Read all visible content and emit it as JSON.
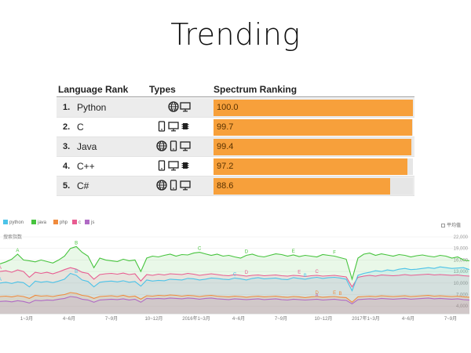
{
  "slide": {
    "title": "Trending"
  },
  "ranking": {
    "headers": {
      "rank": "Language Rank",
      "types": "Types",
      "spectrum": "Spectrum Ranking"
    },
    "rows": [
      {
        "num": "1.",
        "language": "Python",
        "types": [
          "web-icon",
          "desktop-icon"
        ],
        "score": "100.0",
        "value": 100.0
      },
      {
        "num": "2.",
        "language": "C",
        "types": [
          "mobile-icon",
          "desktop-icon",
          "embedded-icon"
        ],
        "score": "99.7",
        "value": 99.7
      },
      {
        "num": "3.",
        "language": "Java",
        "types": [
          "web-icon",
          "mobile-icon",
          "desktop-icon"
        ],
        "score": "99.4",
        "value": 99.4
      },
      {
        "num": "4.",
        "language": "C++",
        "types": [
          "mobile-icon",
          "desktop-icon",
          "embedded-icon"
        ],
        "score": "97.2",
        "value": 97.2
      },
      {
        "num": "5.",
        "language": "C#",
        "types": [
          "web-icon",
          "mobile-icon",
          "desktop-icon"
        ],
        "score": "88.6",
        "value": 88.6
      }
    ],
    "bar_color": "#f7a03b"
  },
  "chart_data": {
    "type": "line",
    "ylabel": "搜索指数",
    "avg_toggle": "平均值",
    "ylim": [
      2000,
      22000
    ],
    "y_ticks": [
      22000,
      19000,
      16000,
      13000,
      10000,
      7000,
      4000
    ],
    "x_ticks": [
      "1~3月",
      "4~6月",
      "7~9月",
      "10~12月",
      "2016年1~3月",
      "4~6月",
      "7~9月",
      "10~12月",
      "2017年1~3月",
      "4~6月",
      "7~9月"
    ],
    "x": [
      0,
      1,
      2,
      3,
      4,
      5,
      6,
      7,
      8,
      9,
      10,
      11,
      12,
      13,
      14,
      15,
      16,
      17,
      18,
      19,
      20,
      21,
      22,
      23,
      24,
      25,
      26,
      27,
      28,
      29,
      30,
      31,
      32,
      33,
      34,
      35,
      36,
      37,
      38,
      39,
      40,
      41,
      42,
      43,
      44,
      45,
      46,
      47,
      48,
      49,
      50,
      51,
      52,
      53,
      54,
      55,
      56,
      57,
      58,
      59,
      60,
      61,
      62,
      63,
      64,
      65,
      66,
      67,
      68,
      69,
      70,
      71,
      72,
      73,
      74,
      75,
      76,
      77,
      78,
      79,
      80
    ],
    "series": [
      {
        "name": "python",
        "color": "#4cc3e8",
        "values": [
          10000,
          10200,
          9900,
          10300,
          10100,
          9000,
          10500,
          10200,
          10400,
          10100,
          10500,
          11000,
          12500,
          12000,
          10800,
          10400,
          9000,
          10200,
          10400,
          10500,
          10300,
          10600,
          10200,
          10400,
          9200,
          10800,
          10500,
          10700,
          10600,
          11000,
          10900,
          10800,
          11200,
          11100,
          10800,
          11000,
          11300,
          11200,
          11000,
          10900,
          11300,
          11100,
          10800,
          11200,
          11400,
          11100,
          11200,
          11300,
          11000,
          10900,
          11400,
          11200,
          11000,
          11300,
          11500,
          11200,
          11400,
          11500,
          11300,
          11000,
          8000,
          12000,
          12500,
          12800,
          13200,
          13000,
          13400,
          13200,
          13600,
          13800,
          13500,
          13600,
          13800,
          14000,
          13800,
          14200,
          14000,
          13800,
          13900,
          14000,
          13500
        ]
      },
      {
        "name": "java",
        "color": "#47c43e",
        "values": [
          15000,
          15500,
          16200,
          17500,
          16000,
          15800,
          15500,
          16000,
          15600,
          15200,
          16000,
          17000,
          19000,
          19500,
          18000,
          17000,
          14000,
          16500,
          16000,
          15800,
          15600,
          16200,
          15800,
          16000,
          13000,
          16500,
          17000,
          16800,
          17200,
          17500,
          17000,
          17400,
          17300,
          17800,
          18000,
          17600,
          17200,
          17500,
          17000,
          17200,
          16800,
          16500,
          17200,
          17500,
          17000,
          16800,
          17200,
          17600,
          17400,
          17000,
          17300,
          16900,
          17200,
          17000,
          16800,
          17400,
          17200,
          17000,
          16600,
          16200,
          11000,
          16500,
          17500,
          17800,
          17200,
          17600,
          17300,
          17000,
          17400,
          17200,
          16800,
          17100,
          17300,
          17000,
          16800,
          17200,
          17000,
          16500,
          16800,
          16000,
          15800
        ]
      },
      {
        "name": "php",
        "color": "#f08a3c",
        "values": [
          6500,
          6600,
          6400,
          6700,
          6500,
          6000,
          6800,
          6600,
          6700,
          6500,
          6800,
          7000,
          7500,
          7300,
          6800,
          6600,
          6000,
          6500,
          6600,
          6700,
          6500,
          6800,
          6400,
          6600,
          5800,
          6700,
          6600,
          6800,
          6700,
          6900,
          6800,
          6600,
          6800,
          6700,
          6500,
          6700,
          6800,
          6600,
          6500,
          6400,
          6600,
          6500,
          6300,
          6500,
          6600,
          6400,
          6500,
          6600,
          6400,
          6300,
          6500,
          6400,
          6200,
          6400,
          6500,
          6300,
          6400,
          6500,
          6300,
          6200,
          5000,
          6400,
          6500,
          6600,
          6500,
          6700,
          6600,
          6500,
          6600,
          6700,
          6500,
          6600,
          6700,
          6800,
          6600,
          6700,
          6600,
          6500,
          6600,
          6400,
          6300
        ]
      },
      {
        "name": "c",
        "color": "#e85c91",
        "values": [
          13000,
          13200,
          12800,
          13400,
          13000,
          11500,
          12800,
          12500,
          12800,
          12400,
          12900,
          13500,
          14000,
          13600,
          12800,
          12500,
          11000,
          12200,
          12400,
          12500,
          12300,
          12600,
          12200,
          12400,
          10500,
          12200,
          12000,
          12300,
          12100,
          12400,
          12300,
          12200,
          12500,
          12300,
          12000,
          12200,
          12400,
          12200,
          12000,
          11900,
          12200,
          12000,
          11800,
          12000,
          12100,
          11900,
          12000,
          12100,
          11900,
          11800,
          12000,
          11900,
          11700,
          11900,
          12000,
          11800,
          11900,
          12000,
          11800,
          11600,
          9000,
          11500,
          11800,
          12000,
          11800,
          12100,
          12000,
          11900,
          12000,
          12200,
          12000,
          12100,
          12200,
          12300,
          12100,
          12200,
          12100,
          12000,
          12100,
          11900,
          11800
        ]
      },
      {
        "name": "js",
        "color": "#b06ac4",
        "values": [
          5200,
          5300,
          5100,
          5400,
          5200,
          4800,
          5500,
          5400,
          5600,
          5500,
          5800,
          6000,
          6500,
          6300,
          5800,
          5600,
          5000,
          5600,
          5700,
          5800,
          5700,
          5900,
          5600,
          5800,
          5000,
          6000,
          5900,
          6000,
          5900,
          6100,
          6000,
          5900,
          6100,
          6000,
          5800,
          6000,
          6100,
          5900,
          5800,
          5700,
          5900,
          5800,
          5700,
          5800,
          5900,
          5700,
          5800,
          5900,
          5700,
          5600,
          5800,
          5700,
          5600,
          5700,
          5800,
          5600,
          5700,
          5800,
          5600,
          5500,
          4600,
          5700,
          5800,
          5900,
          5800,
          6000,
          5900,
          5800,
          5900,
          6000,
          5800,
          5900,
          6000,
          6100,
          5900,
          6000,
          5900,
          5800,
          5900,
          5700,
          5600
        ]
      }
    ],
    "annotations": [
      {
        "label": "A",
        "x": 3,
        "series": "java"
      },
      {
        "label": "B",
        "x": 13,
        "series": "java"
      },
      {
        "label": "A",
        "x": 0,
        "series": "c"
      },
      {
        "label": "B",
        "x": 13,
        "series": "python"
      },
      {
        "label": "A",
        "x": 0,
        "series": "python"
      },
      {
        "label": "C",
        "x": 34,
        "series": "java"
      },
      {
        "label": "D",
        "x": 42,
        "series": "java"
      },
      {
        "label": "C",
        "x": 40,
        "series": "python"
      },
      {
        "label": "D",
        "x": 42,
        "series": "c"
      },
      {
        "label": "E",
        "x": 50,
        "series": "java"
      },
      {
        "label": "B",
        "x": 52,
        "series": "python"
      },
      {
        "label": "C",
        "x": 54,
        "series": "c"
      },
      {
        "label": "E",
        "x": 51,
        "series": "c"
      },
      {
        "label": "D",
        "x": 54,
        "series": "php"
      },
      {
        "label": "A",
        "x": 54,
        "series": "js"
      },
      {
        "label": "F",
        "x": 57,
        "series": "java"
      },
      {
        "label": "E",
        "x": 57,
        "series": "php"
      },
      {
        "label": "B",
        "x": 58,
        "series": "php"
      }
    ]
  }
}
